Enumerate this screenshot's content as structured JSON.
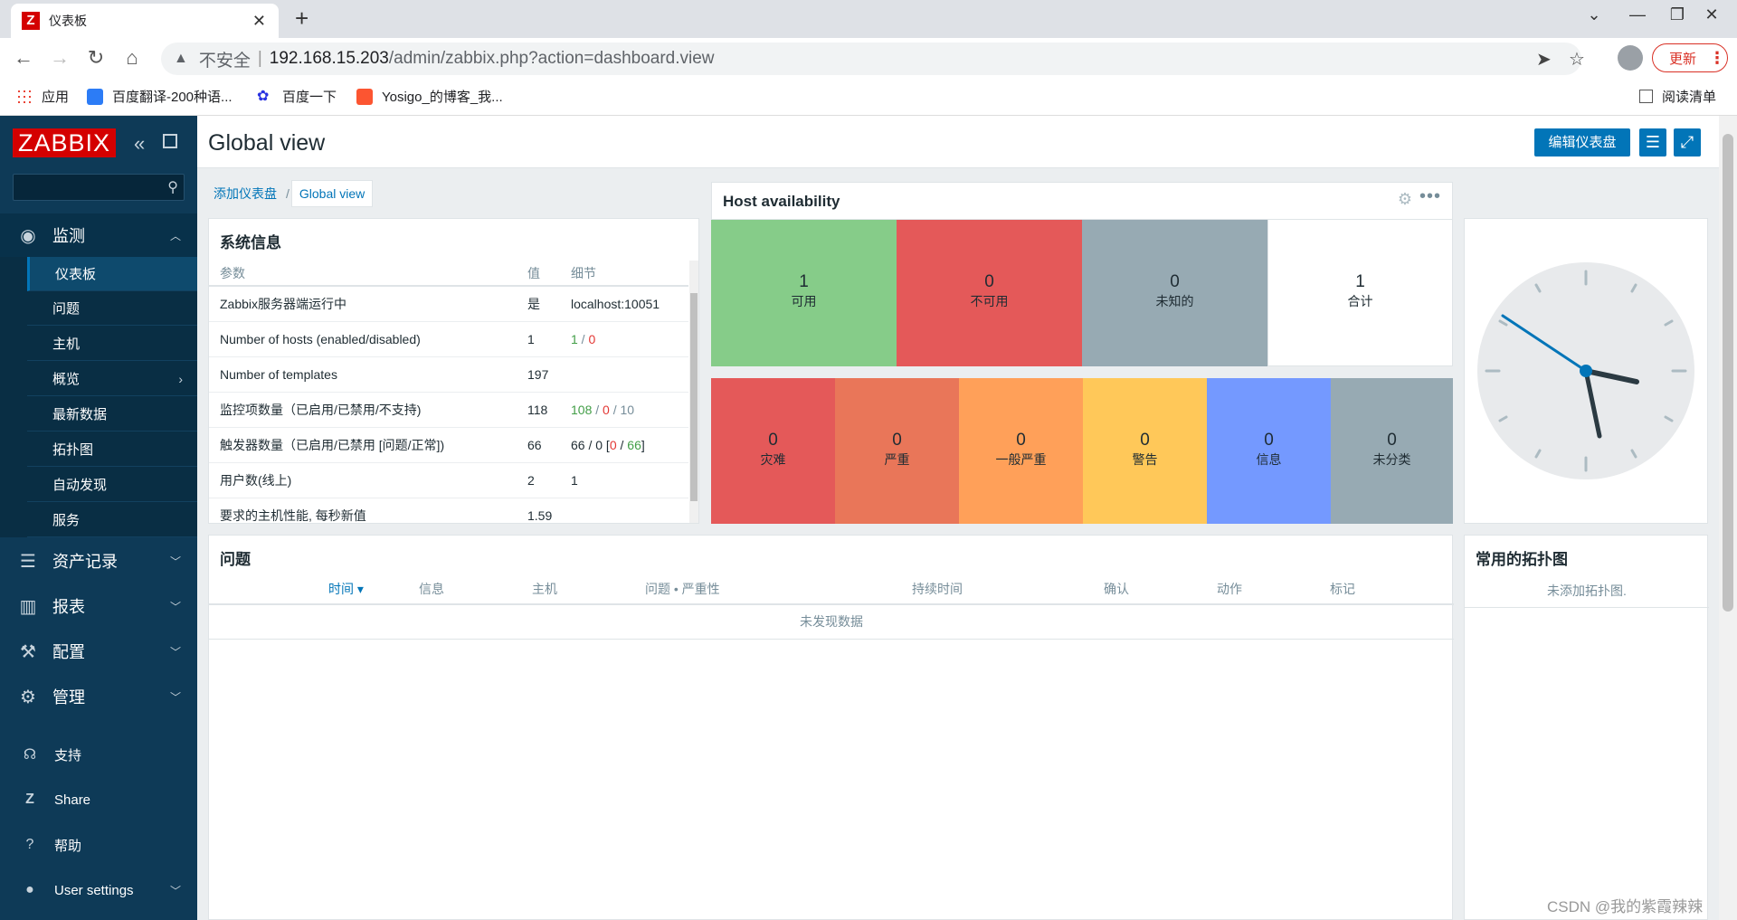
{
  "browser": {
    "tab_title": "仪表板",
    "tab_favicon": "Z",
    "url_warning": "不安全",
    "url_host": "192.168.15.203",
    "url_path": "/admin/zabbix.php?action=dashboard.view",
    "update_label": "更新",
    "bookmarks": [
      "应用",
      "百度翻译-200种语...",
      "百度一下",
      "Yosigo_的博客_我..."
    ],
    "reading_list": "阅读清单"
  },
  "sidebar": {
    "logo": "ZABBIX",
    "search_placeholder": "",
    "monitor_label": "监测",
    "submenu": [
      "仪表板",
      "问题",
      "主机",
      "概览",
      "最新数据",
      "拓扑图",
      "自动发现",
      "服务"
    ],
    "sections": [
      "资产记录",
      "报表",
      "配置",
      "管理"
    ],
    "bottom": [
      "支持",
      "Share",
      "帮助",
      "User settings"
    ]
  },
  "header": {
    "title": "Global view",
    "edit_button": "编辑仪表盘"
  },
  "breadcrumb": {
    "root": "添加仪表盘",
    "current": "Global view"
  },
  "sysinfo": {
    "title": "系统信息",
    "columns": [
      "参数",
      "值",
      "细节"
    ],
    "rows": [
      {
        "param": "Zabbix服务器端运行中",
        "value": "是",
        "detail": "localhost:10051"
      },
      {
        "param": "Number of hosts (enabled/disabled)",
        "value": "1",
        "d1": "1",
        "d2": "0"
      },
      {
        "param": "Number of templates",
        "value": "197"
      },
      {
        "param": "监控项数量（已启用/已禁用/不支持)",
        "value": "118",
        "d1": "108",
        "d2": "0",
        "d3": "10"
      },
      {
        "param": "触发器数量（已启用/已禁用 [问题/正常])",
        "value": "66",
        "d_text": "66 / 0 [",
        "d2": "0",
        "d1": "66",
        "d_end": "]"
      },
      {
        "param": "用户数(线上)",
        "value": "2",
        "d1": "1"
      },
      {
        "param": "要求的主机性能, 每秒新值",
        "value": "1.59"
      }
    ]
  },
  "host_availability": {
    "title": "Host availability",
    "hosts": [
      {
        "count": "1",
        "label": "可用",
        "color": "#86cc89"
      },
      {
        "count": "0",
        "label": "不可用",
        "color": "#e45959"
      },
      {
        "count": "0",
        "label": "未知的",
        "color": "#97aab3"
      },
      {
        "count": "1",
        "label": "合计",
        "color": "#ffffff"
      }
    ],
    "severities": [
      {
        "count": "0",
        "label": "灾难",
        "color": "#e45959"
      },
      {
        "count": "0",
        "label": "严重",
        "color": "#e97659"
      },
      {
        "count": "0",
        "label": "一般严重",
        "color": "#ffa059"
      },
      {
        "count": "0",
        "label": "警告",
        "color": "#ffc859"
      },
      {
        "count": "0",
        "label": "信息",
        "color": "#7499ff"
      },
      {
        "count": "0",
        "label": "未分类",
        "color": "#97aab3"
      }
    ]
  },
  "problems": {
    "title": "问题",
    "columns": [
      "时间 ▾",
      "信息",
      "主机",
      "问题 • 严重性",
      "持续时间",
      "确认",
      "动作",
      "标记"
    ],
    "empty": "未发现数据"
  },
  "maps": {
    "title": "常用的拓扑图",
    "empty": "未添加拓扑图."
  },
  "watermark": "CSDN @我的紫霞辣辣",
  "colors": {
    "accent": "#0275b8",
    "sidebar": "#0e3a57",
    "logo": "#d40000"
  }
}
